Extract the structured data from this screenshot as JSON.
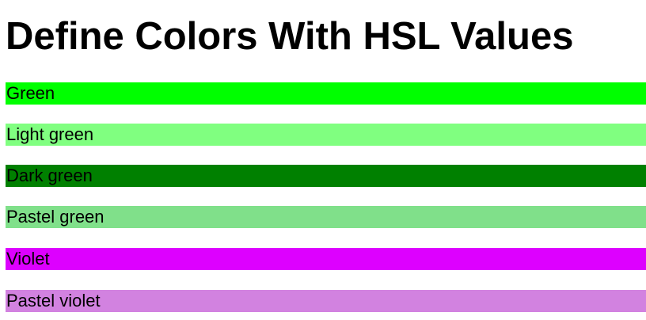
{
  "page": {
    "title": "Define Colors With HSL Values"
  },
  "swatches": [
    {
      "label": "Green",
      "color": "#00ff00"
    },
    {
      "label": "Light green",
      "color": "#80ff80"
    },
    {
      "label": "Dark green",
      "color": "#008000"
    },
    {
      "label": "Pastel green",
      "color": "#80e08a"
    },
    {
      "label": "Violet",
      "color": "#dd00ff"
    },
    {
      "label": "Pastel violet",
      "color": "#d282e0"
    }
  ]
}
